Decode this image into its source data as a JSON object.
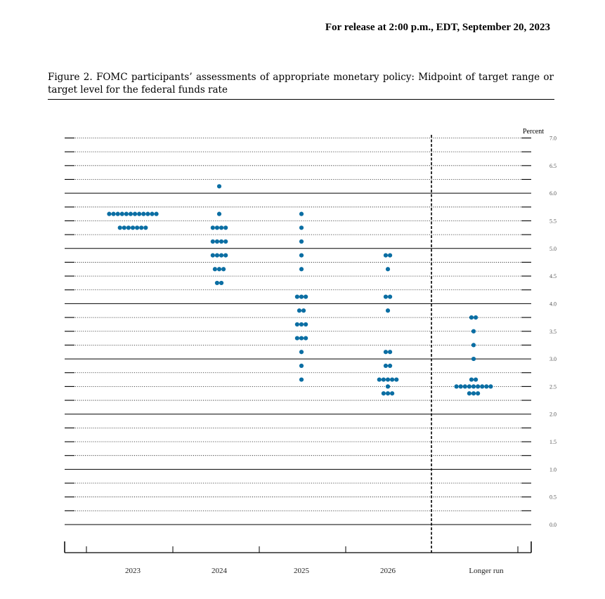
{
  "header": {
    "release": "For release at 2:00 p.m., EDT, September 20, 2023"
  },
  "figure": {
    "title": "Figure 2.  FOMC participants’ assessments of appropriate monetary policy:  Midpoint of target range or target level for the federal funds rate"
  },
  "colors": {
    "dot": "#0b6ea3",
    "line": "#000000"
  },
  "chart_data": {
    "type": "scatter",
    "unit_label": "Percent",
    "ylim": [
      0.0,
      7.0
    ],
    "y_ticks": [
      "0.0",
      "0.5",
      "1.0",
      "1.5",
      "2.0",
      "2.5",
      "3.0",
      "3.5",
      "4.0",
      "4.5",
      "5.0",
      "5.5",
      "6.0",
      "6.5",
      "7.0"
    ],
    "grid": "dotted every 0.25, solid every 1.0",
    "categories": [
      "2023",
      "2024",
      "2025",
      "2026",
      "Longer run"
    ],
    "dots": [
      {
        "category": "2023",
        "points": [
          {
            "rate": 5.625,
            "count": 12
          },
          {
            "rate": 5.375,
            "count": 7
          }
        ]
      },
      {
        "category": "2024",
        "points": [
          {
            "rate": 6.125,
            "count": 1
          },
          {
            "rate": 5.625,
            "count": 1
          },
          {
            "rate": 5.375,
            "count": 4
          },
          {
            "rate": 5.125,
            "count": 4
          },
          {
            "rate": 4.875,
            "count": 4
          },
          {
            "rate": 4.625,
            "count": 3
          },
          {
            "rate": 4.375,
            "count": 2
          }
        ]
      },
      {
        "category": "2025",
        "points": [
          {
            "rate": 5.625,
            "count": 1
          },
          {
            "rate": 5.375,
            "count": 1
          },
          {
            "rate": 5.125,
            "count": 1
          },
          {
            "rate": 4.875,
            "count": 1
          },
          {
            "rate": 4.625,
            "count": 1
          },
          {
            "rate": 4.125,
            "count": 3
          },
          {
            "rate": 3.875,
            "count": 2
          },
          {
            "rate": 3.625,
            "count": 3
          },
          {
            "rate": 3.375,
            "count": 3
          },
          {
            "rate": 3.125,
            "count": 1
          },
          {
            "rate": 2.875,
            "count": 1
          },
          {
            "rate": 2.625,
            "count": 1
          }
        ]
      },
      {
        "category": "2026",
        "points": [
          {
            "rate": 4.875,
            "count": 2
          },
          {
            "rate": 4.625,
            "count": 1
          },
          {
            "rate": 4.125,
            "count": 2
          },
          {
            "rate": 3.875,
            "count": 1
          },
          {
            "rate": 3.125,
            "count": 2
          },
          {
            "rate": 2.875,
            "count": 2
          },
          {
            "rate": 2.625,
            "count": 5
          },
          {
            "rate": 2.5,
            "count": 1
          },
          {
            "rate": 2.375,
            "count": 3
          }
        ]
      },
      {
        "category": "Longer run",
        "points": [
          {
            "rate": 3.75,
            "count": 2
          },
          {
            "rate": 3.5,
            "count": 1
          },
          {
            "rate": 3.25,
            "count": 1
          },
          {
            "rate": 3.0,
            "count": 1
          },
          {
            "rate": 2.625,
            "count": 2
          },
          {
            "rate": 2.5,
            "count": 9
          },
          {
            "rate": 2.375,
            "count": 3
          }
        ]
      }
    ]
  }
}
